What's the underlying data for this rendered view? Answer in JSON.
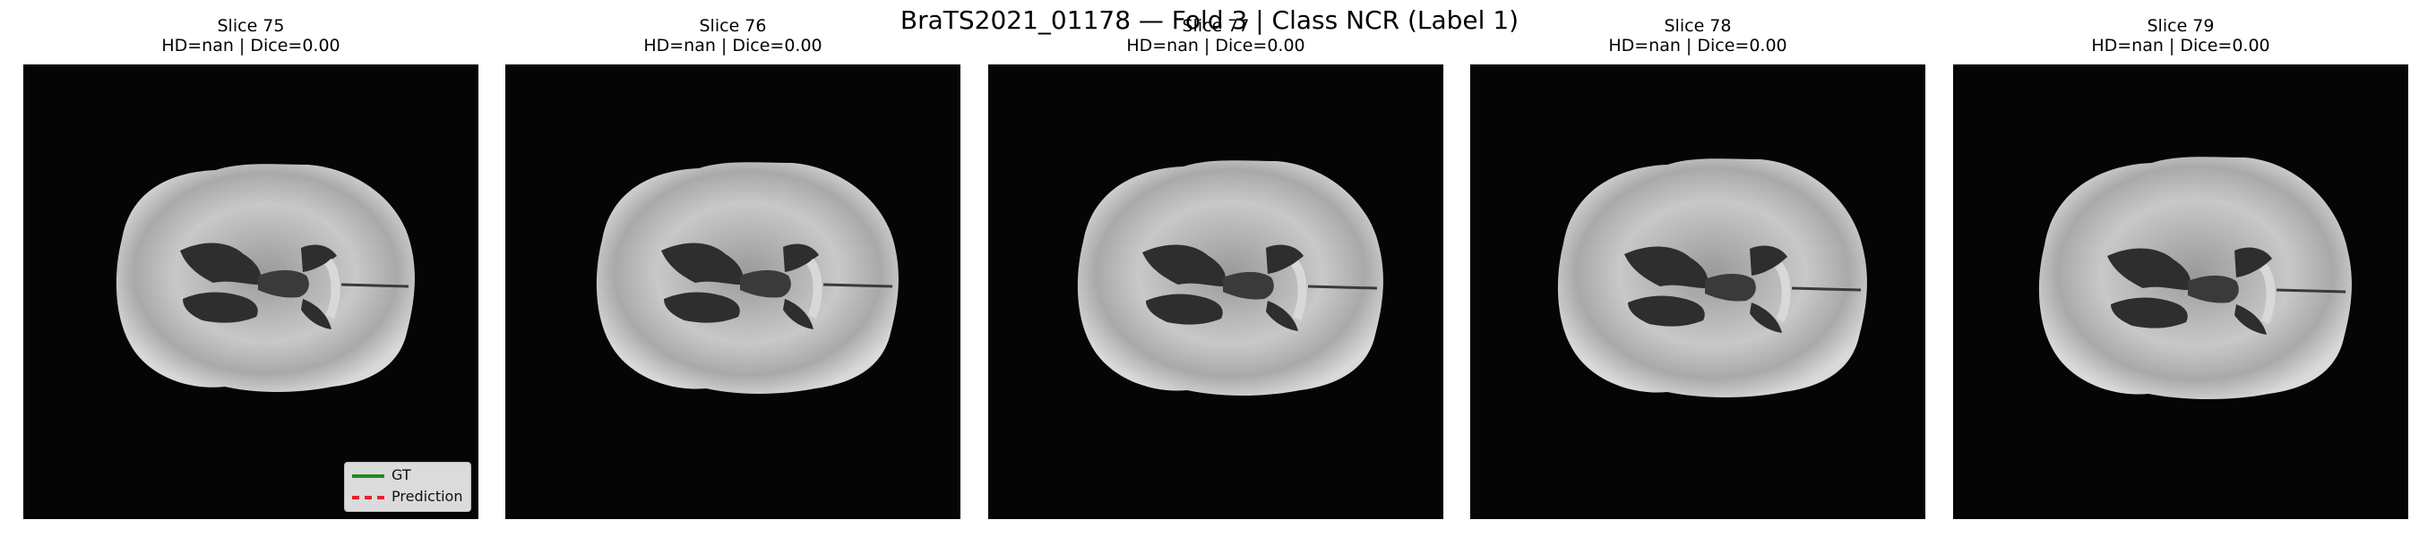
{
  "figure": {
    "title": "BraTS2021_01178 — Fold 3 | Class NCR (Label 1)"
  },
  "panels": [
    {
      "title": "Slice 75",
      "metrics": "HD=nan | Dice=0.00"
    },
    {
      "title": "Slice 76",
      "metrics": "HD=nan | Dice=0.00"
    },
    {
      "title": "Slice 77",
      "metrics": "HD=nan | Dice=0.00"
    },
    {
      "title": "Slice 78",
      "metrics": "HD=nan | Dice=0.00"
    },
    {
      "title": "Slice 79",
      "metrics": "HD=nan | Dice=0.00"
    }
  ],
  "legend": {
    "items": [
      {
        "label": "GT",
        "color": "#228b22",
        "style": "solid"
      },
      {
        "label": "Prediction",
        "color": "#e8202a",
        "style": "dashed"
      }
    ]
  },
  "colors": {
    "background": "#050505",
    "tissue": "#b4b4b4",
    "ventricle": "#2e2e2e"
  }
}
